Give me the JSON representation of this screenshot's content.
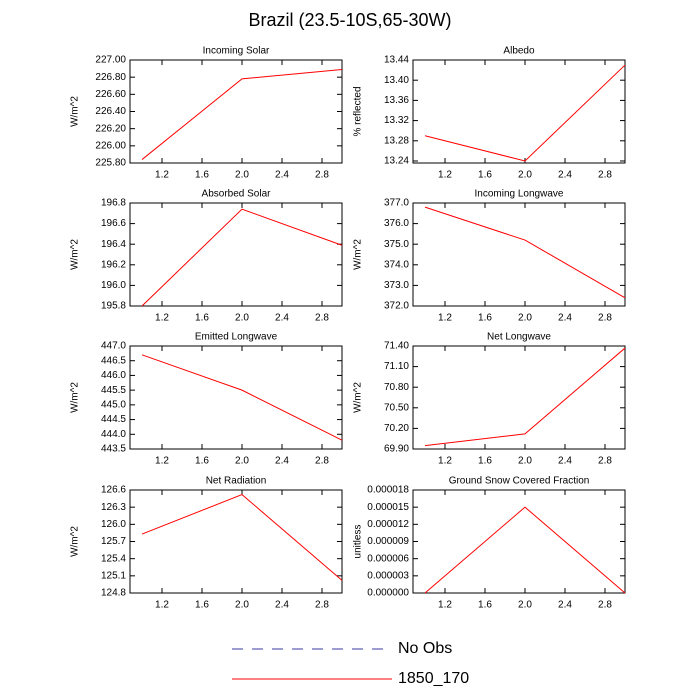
{
  "title": "Brazil (23.5-10S,65-30W)",
  "legend": [
    {
      "name": "No Obs",
      "color": "#3a3aa0",
      "dashed": true
    },
    {
      "name": "1850_170",
      "color": "#ff0000",
      "dashed": false
    }
  ],
  "chart_data": [
    {
      "type": "line",
      "title": "Incoming Solar",
      "y_label": "W/m^2",
      "x": [
        1,
        2,
        3
      ],
      "series": [
        {
          "name": "1850_170",
          "color": "#ff0000",
          "values": [
            225.84,
            226.78,
            226.89
          ]
        }
      ],
      "xlim": [
        0.88,
        3.0
      ],
      "xticks": [
        1.2,
        1.6,
        {
          "value": 2,
          "label": "2.0"
        },
        2.4,
        2.8
      ],
      "ylim": [
        225.8,
        227.0
      ],
      "yticks": [
        {
          "value": 225.8,
          "label": "225.80"
        },
        {
          "value": 226.0,
          "label": "226.00"
        },
        {
          "value": 226.2,
          "label": "226.20"
        },
        {
          "value": 226.4,
          "label": "226.40"
        },
        {
          "value": 226.6,
          "label": "226.60"
        },
        {
          "value": 226.8,
          "label": "226.80"
        },
        {
          "value": 227.0,
          "label": "227.00"
        }
      ]
    },
    {
      "type": "line",
      "title": "Albedo",
      "y_label": "% reflected",
      "x": [
        1,
        2,
        3
      ],
      "series": [
        {
          "name": "1850_170",
          "color": "#ff0000",
          "values": [
            13.29,
            13.24,
            13.43
          ]
        }
      ],
      "xlim": [
        0.88,
        3.0
      ],
      "xticks": [
        1.2,
        1.6,
        {
          "value": 2,
          "label": "2.0"
        },
        2.4,
        2.8
      ],
      "ylim": [
        13.236,
        13.44
      ],
      "yticks": [
        13.24,
        13.28,
        13.32,
        13.36,
        {
          "value": 13.4,
          "label": "13.40"
        },
        13.44
      ]
    },
    {
      "type": "line",
      "title": "Absorbed Solar",
      "y_label": "W/m^2",
      "x": [
        1,
        2,
        3
      ],
      "series": [
        {
          "name": "1850_170",
          "color": "#ff0000",
          "values": [
            195.8,
            196.74,
            196.39
          ]
        }
      ],
      "xlim": [
        0.88,
        3.0
      ],
      "xticks": [
        1.2,
        1.6,
        {
          "value": 2,
          "label": "2.0"
        },
        2.4,
        2.8
      ],
      "ylim": [
        195.8,
        196.8
      ],
      "yticks": [
        195.8,
        {
          "value": 196.0,
          "label": "196.0"
        },
        196.2,
        196.4,
        196.6,
        196.8
      ]
    },
    {
      "type": "line",
      "title": "Incoming Longwave",
      "y_label": "W/m^2",
      "x": [
        1,
        2,
        3
      ],
      "series": [
        {
          "name": "1850_170",
          "color": "#ff0000",
          "values": [
            376.8,
            375.2,
            372.4
          ]
        }
      ],
      "xlim": [
        0.88,
        3.0
      ],
      "xticks": [
        1.2,
        1.6,
        {
          "value": 2,
          "label": "2.0"
        },
        2.4,
        2.8
      ],
      "ylim": [
        372.0,
        377.0
      ],
      "yticks": [
        {
          "value": 372,
          "label": "372.0"
        },
        {
          "value": 373,
          "label": "373.0"
        },
        {
          "value": 374,
          "label": "374.0"
        },
        {
          "value": 375,
          "label": "375.0"
        },
        {
          "value": 376,
          "label": "376.0"
        },
        {
          "value": 377,
          "label": "377.0"
        }
      ]
    },
    {
      "type": "line",
      "title": "Emitted Longwave",
      "y_label": "W/m^2",
      "x": [
        1,
        2,
        3
      ],
      "series": [
        {
          "name": "1850_170",
          "color": "#ff0000",
          "values": [
            446.7,
            445.5,
            443.8
          ]
        }
      ],
      "xlim": [
        0.88,
        3.0
      ],
      "xticks": [
        1.2,
        1.6,
        {
          "value": 2,
          "label": "2.0"
        },
        2.4,
        2.8
      ],
      "ylim": [
        443.5,
        447.0
      ],
      "yticks": [
        443.5,
        {
          "value": 444,
          "label": "444.0"
        },
        444.5,
        {
          "value": 445,
          "label": "445.0"
        },
        445.5,
        {
          "value": 446,
          "label": "446.0"
        },
        446.5,
        {
          "value": 447,
          "label": "447.0"
        }
      ]
    },
    {
      "type": "line",
      "title": "Net Longwave",
      "y_label": "W/m^2",
      "x": [
        1,
        2,
        3
      ],
      "series": [
        {
          "name": "1850_170",
          "color": "#ff0000",
          "values": [
            69.95,
            70.12,
            71.37
          ]
        }
      ],
      "xlim": [
        0.88,
        3.0
      ],
      "xticks": [
        1.2,
        1.6,
        {
          "value": 2,
          "label": "2.0"
        },
        2.4,
        2.8
      ],
      "ylim": [
        69.9,
        71.4
      ],
      "yticks": [
        {
          "value": 69.9,
          "label": "69.90"
        },
        {
          "value": 70.2,
          "label": "70.20"
        },
        {
          "value": 70.5,
          "label": "70.50"
        },
        {
          "value": 70.8,
          "label": "70.80"
        },
        {
          "value": 71.1,
          "label": "71.10"
        },
        {
          "value": 71.4,
          "label": "71.40"
        }
      ]
    },
    {
      "type": "line",
      "title": "Net Radiation",
      "y_label": "W/m^2",
      "x": [
        1,
        2,
        3
      ],
      "series": [
        {
          "name": "1850_170",
          "color": "#ff0000",
          "values": [
            125.83,
            126.52,
            125.02
          ]
        }
      ],
      "xlim": [
        0.88,
        3.0
      ],
      "xticks": [
        1.2,
        1.6,
        {
          "value": 2,
          "label": "2.0"
        },
        2.4,
        2.8
      ],
      "ylim": [
        124.8,
        126.6
      ],
      "yticks": [
        124.8,
        125.1,
        125.4,
        125.7,
        {
          "value": 126,
          "label": "126.0"
        },
        126.3,
        126.6
      ]
    },
    {
      "type": "line",
      "title": "Ground Snow Covered Fraction",
      "y_label": "unitless",
      "x": [
        1,
        2,
        3
      ],
      "series": [
        {
          "name": "1850_170",
          "color": "#ff0000",
          "values": [
            0,
            1.5e-05,
            0
          ]
        }
      ],
      "xlim": [
        0.88,
        3.0
      ],
      "xticks": [
        1.2,
        1.6,
        {
          "value": 2,
          "label": "2.0"
        },
        2.4,
        2.8
      ],
      "ylim": [
        0,
        1.8e-05
      ],
      "yticks": [
        {
          "value": 0,
          "label": "0.000000"
        },
        {
          "value": 3e-06,
          "label": "0.000003"
        },
        {
          "value": 6e-06,
          "label": "0.000006"
        },
        {
          "value": 9e-06,
          "label": "0.000009"
        },
        {
          "value": 1.2e-05,
          "label": "0.000012"
        },
        {
          "value": 1.5e-05,
          "label": "0.000015"
        },
        {
          "value": 1.8e-05,
          "label": "0.000018"
        }
      ]
    }
  ]
}
